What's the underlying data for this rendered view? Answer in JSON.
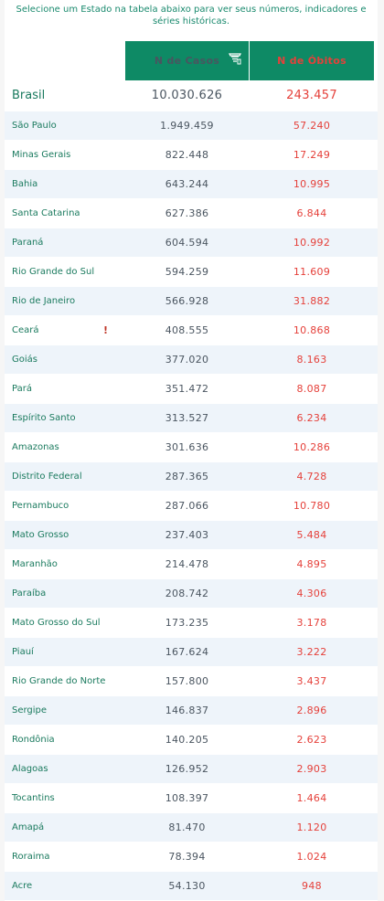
{
  "intro": "Selecione um Estado na tabela abaixo para ver seus números, indicadores e séries históricas.",
  "columns": {
    "cases": "N de Casos",
    "deaths": "N de Óbitos"
  },
  "accent_color": "#0e8a65",
  "death_color": "#e5403a",
  "rows": [
    {
      "name": "Brasil",
      "cases": "10.030.626",
      "deaths": "243.457"
    },
    {
      "name": "São Paulo",
      "cases": "1.949.459",
      "deaths": "57.240"
    },
    {
      "name": "Minas Gerais",
      "cases": "822.448",
      "deaths": "17.249"
    },
    {
      "name": "Bahia",
      "cases": "643.244",
      "deaths": "10.995"
    },
    {
      "name": "Santa Catarina",
      "cases": "627.386",
      "deaths": "6.844"
    },
    {
      "name": "Paraná",
      "cases": "604.594",
      "deaths": "10.992"
    },
    {
      "name": "Rio Grande do Sul",
      "cases": "594.259",
      "deaths": "11.609"
    },
    {
      "name": "Rio de Janeiro",
      "cases": "566.928",
      "deaths": "31.882"
    },
    {
      "name": "Ceará",
      "cases": "408.555",
      "deaths": "10.868",
      "alert": "!"
    },
    {
      "name": "Goiás",
      "cases": "377.020",
      "deaths": "8.163"
    },
    {
      "name": "Pará",
      "cases": "351.472",
      "deaths": "8.087"
    },
    {
      "name": "Espírito Santo",
      "cases": "313.527",
      "deaths": "6.234"
    },
    {
      "name": "Amazonas",
      "cases": "301.636",
      "deaths": "10.286"
    },
    {
      "name": "Distrito Federal",
      "cases": "287.365",
      "deaths": "4.728"
    },
    {
      "name": "Pernambuco",
      "cases": "287.066",
      "deaths": "10.780"
    },
    {
      "name": "Mato Grosso",
      "cases": "237.403",
      "deaths": "5.484"
    },
    {
      "name": "Maranhão",
      "cases": "214.478",
      "deaths": "4.895"
    },
    {
      "name": "Paraíba",
      "cases": "208.742",
      "deaths": "4.306"
    },
    {
      "name": "Mato Grosso do Sul",
      "cases": "173.235",
      "deaths": "3.178"
    },
    {
      "name": "Piauí",
      "cases": "167.624",
      "deaths": "3.222"
    },
    {
      "name": "Rio Grande do Norte",
      "cases": "157.800",
      "deaths": "3.437"
    },
    {
      "name": "Sergipe",
      "cases": "146.837",
      "deaths": "2.896"
    },
    {
      "name": "Rondônia",
      "cases": "140.205",
      "deaths": "2.623"
    },
    {
      "name": "Alagoas",
      "cases": "126.952",
      "deaths": "2.903"
    },
    {
      "name": "Tocantins",
      "cases": "108.397",
      "deaths": "1.464"
    },
    {
      "name": "Amapá",
      "cases": "81.470",
      "deaths": "1.120"
    },
    {
      "name": "Roraima",
      "cases": "78.394",
      "deaths": "1.024"
    },
    {
      "name": "Acre",
      "cases": "54.130",
      "deaths": "948"
    }
  ]
}
